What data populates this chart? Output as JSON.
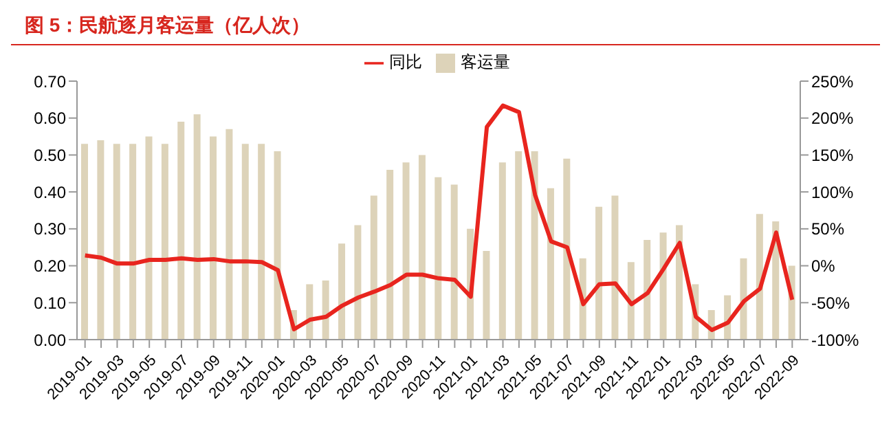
{
  "chart_data": {
    "type": "bar",
    "title": "图 5：民航逐月客运量（亿人次）",
    "categories": [
      "2019-01",
      null,
      "2019-03",
      null,
      "2019-05",
      null,
      "2019-07",
      null,
      "2019-09",
      null,
      "2019-11",
      null,
      "2020-01",
      null,
      "2020-03",
      null,
      "2020-05",
      null,
      "2020-07",
      null,
      "2020-09",
      null,
      "2020-11",
      null,
      "2021-01",
      null,
      "2021-03",
      null,
      "2021-05",
      null,
      "2021-07",
      null,
      "2021-09",
      null,
      "2021-11",
      null,
      "2022-01",
      null,
      "2022-03",
      null,
      "2022-05",
      null,
      "2022-07",
      null,
      "2022-09"
    ],
    "series": [
      {
        "name": "客运量",
        "color": "#ddd3b9",
        "values": [
          0.53,
          0.54,
          0.53,
          0.53,
          0.55,
          0.53,
          0.59,
          0.61,
          0.55,
          0.57,
          0.53,
          0.53,
          0.51,
          0.08,
          0.15,
          0.16,
          0.26,
          0.31,
          0.39,
          0.46,
          0.48,
          0.5,
          0.44,
          0.42,
          0.3,
          0.24,
          0.48,
          0.51,
          0.51,
          0.41,
          0.49,
          0.22,
          0.36,
          0.39,
          0.21,
          0.27,
          0.29,
          0.31,
          0.15,
          0.08,
          0.12,
          0.22,
          0.34,
          0.32,
          0.2
        ]
      },
      {
        "name": "同比",
        "type": "line",
        "axis": "y2",
        "color": "#e8251e",
        "values": [
          14,
          11,
          3,
          3,
          8,
          8,
          10,
          8,
          9,
          6,
          6,
          5,
          -6,
          -86,
          -73,
          -69,
          -54,
          -43,
          -35,
          -26,
          -12,
          -12,
          -17,
          -19,
          -42,
          188,
          217,
          208,
          96,
          33,
          25,
          -52,
          -25,
          -24,
          -52,
          -37,
          -4,
          31,
          -69,
          -87,
          -77,
          -48,
          -31,
          45,
          -46
        ]
      }
    ],
    "ylim": [
      0,
      0.7
    ],
    "yticks": [
      {
        "value": 0,
        "label": "0.00"
      },
      {
        "value": 0.1,
        "label": "0.10"
      },
      {
        "value": 0.2,
        "label": "0.20"
      },
      {
        "value": 0.3,
        "label": "0.30"
      },
      {
        "value": 0.4,
        "label": "0.40"
      },
      {
        "value": 0.5,
        "label": "0.50"
      },
      {
        "value": 0.6,
        "label": "0.60"
      },
      {
        "value": 0.7,
        "label": "0.70"
      }
    ],
    "y2lim": [
      -100,
      250
    ],
    "y2ticks": [
      {
        "value": -100,
        "label": "-100%"
      },
      {
        "value": -50,
        "label": "-50%"
      },
      {
        "value": 0,
        "label": "0%"
      },
      {
        "value": 50,
        "label": "50%"
      },
      {
        "value": 100,
        "label": "100%"
      },
      {
        "value": 150,
        "label": "150%"
      },
      {
        "value": 200,
        "label": "200%"
      },
      {
        "value": 250,
        "label": "250%"
      }
    ],
    "legend": "top",
    "grid": false,
    "marker": "none",
    "line_style": "solid"
  }
}
